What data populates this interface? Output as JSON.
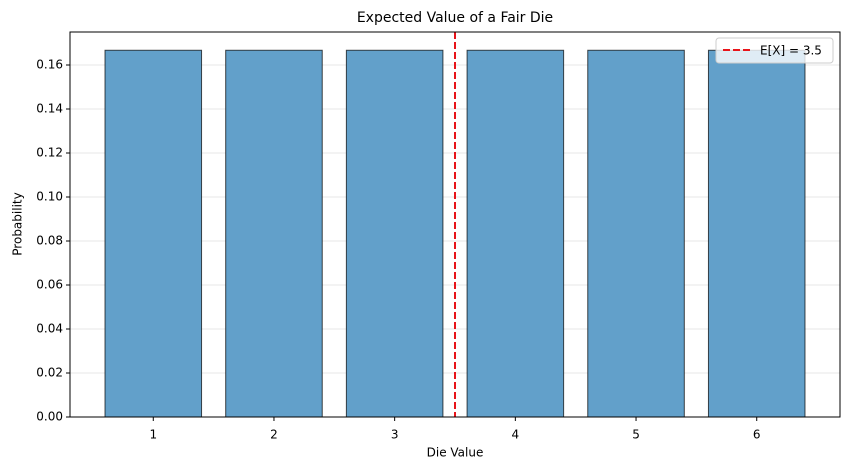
{
  "chart_data": {
    "type": "bar",
    "title": "Expected Value of a Fair Die",
    "x_label": "Die Value",
    "y_label": "Probability",
    "x": [
      1,
      2,
      3,
      4,
      5,
      6
    ],
    "values": [
      0.1667,
      0.1667,
      0.1667,
      0.1667,
      0.1667,
      0.1667
    ],
    "color": "#62a0ca",
    "xlim": [
      0.31,
      6.69
    ],
    "xticks": [
      1,
      2,
      3,
      4,
      5,
      6
    ],
    "ylim": [
      0,
      0.175
    ],
    "yticks": [
      {
        "value": 0,
        "label": "0.00"
      },
      {
        "value": 0.02,
        "label": "0.02"
      },
      {
        "value": 0.04,
        "label": "0.04"
      },
      {
        "value": 0.06,
        "label": "0.06"
      },
      {
        "value": 0.08,
        "label": "0.08"
      },
      {
        "value": 0.1,
        "label": "0.10"
      },
      {
        "value": 0.12,
        "label": "0.12"
      },
      {
        "value": 0.14,
        "label": "0.14"
      },
      {
        "value": 0.16,
        "label": "0.16"
      }
    ],
    "grid": true,
    "vline": {
      "x": 3.5,
      "label": "E[X] = 3.5",
      "color": "#e8141a"
    },
    "legend": "upper right"
  }
}
